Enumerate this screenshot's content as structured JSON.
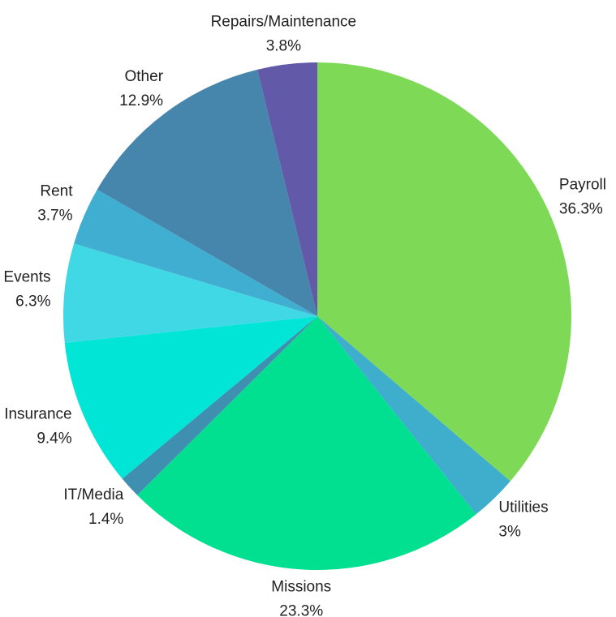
{
  "chart_data": {
    "type": "pie",
    "categories": [
      "Payroll",
      "Utilities",
      "Missions",
      "IT/Media",
      "Insurance",
      "Events",
      "Rent",
      "Other",
      "Repairs/Maintenance"
    ],
    "values": [
      36.3,
      3,
      23.3,
      1.4,
      9.4,
      6.3,
      3.7,
      12.9,
      3.8
    ],
    "value_labels": [
      "36.3%",
      "3%",
      "23.3%",
      "1.4%",
      "9.4%",
      "6.3%",
      "3.7%",
      "12.9%",
      "3.8%"
    ],
    "colors": [
      "#7ed957",
      "#3fadcc",
      "#00e090",
      "#3f8fb0",
      "#00e5d5",
      "#40d8e5",
      "#40aed0",
      "#4686ad",
      "#625aa8"
    ]
  }
}
